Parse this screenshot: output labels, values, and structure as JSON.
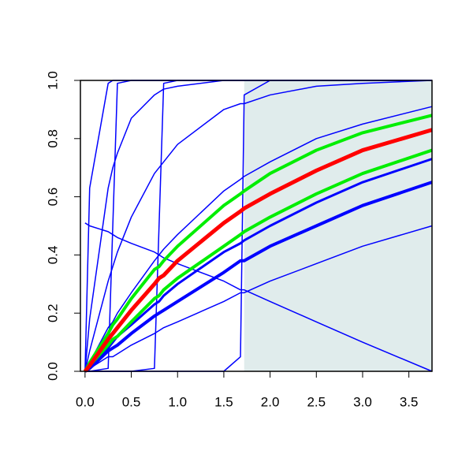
{
  "chart_data": {
    "type": "line",
    "x": [
      0,
      0.05,
      0.25,
      0.3,
      0.35,
      0.5,
      0.75,
      0.8,
      0.85,
      1,
      1.5,
      1.68,
      1.72,
      2,
      2.5,
      3,
      3.75
    ],
    "series": [
      {
        "color": "#0000ff",
        "width": 1.5,
        "values": [
          0,
          0.63,
          0.99,
          1,
          1,
          1,
          1,
          1,
          1,
          1,
          1,
          1,
          1,
          1,
          1,
          1,
          1
        ]
      },
      {
        "color": "#0000ff",
        "width": 1.5,
        "values": [
          0,
          0.18,
          0.63,
          0.7,
          0.75,
          0.87,
          0.95,
          0.96,
          0.97,
          0.98,
          1,
          1,
          1,
          1,
          1,
          1,
          1
        ]
      },
      {
        "color": "#0000ff",
        "width": 1.5,
        "values": [
          0,
          0.07,
          0.31,
          0.36,
          0.41,
          0.53,
          0.68,
          0.7,
          0.72,
          0.78,
          0.9,
          0.92,
          0.92,
          0.95,
          0.98,
          0.99,
          1
        ]
      },
      {
        "color": "#0000ff",
        "width": 1.5,
        "values": [
          0,
          0,
          0.01,
          0.5,
          0.99,
          1,
          1,
          1,
          1,
          1,
          1,
          1,
          1,
          1,
          1,
          1,
          1
        ]
      },
      {
        "color": "#0000ff",
        "width": 1.5,
        "values": [
          0,
          0,
          0,
          0,
          0,
          0,
          0.01,
          0.5,
          0.99,
          1,
          1,
          1,
          1,
          1,
          1,
          1,
          1
        ]
      },
      {
        "color": "#0000ff",
        "width": 1.5,
        "values": [
          0,
          0,
          0,
          0,
          0,
          0,
          0,
          0,
          0,
          0,
          0,
          0.05,
          0.95,
          1,
          1,
          1,
          1
        ]
      },
      {
        "color": "#0000ff",
        "width": 1.5,
        "values": [
          0.51,
          0.5,
          0.48,
          0.47,
          0.46,
          0.44,
          0.41,
          0.4,
          0.39,
          0.37,
          0.31,
          0.28,
          0.28,
          0.24,
          0.17,
          0.1,
          0
        ]
      },
      {
        "color": "#0000ff",
        "width": 1.5,
        "values": [
          0,
          0.03,
          0.15,
          0.17,
          0.2,
          0.27,
          0.38,
          0.4,
          0.42,
          0.47,
          0.62,
          0.66,
          0.67,
          0.72,
          0.8,
          0.85,
          0.91
        ]
      },
      {
        "color": "#0000ff",
        "width": 3,
        "values": [
          0,
          0.02,
          0.08,
          0.1,
          0.12,
          0.16,
          0.23,
          0.24,
          0.26,
          0.3,
          0.41,
          0.44,
          0.45,
          0.5,
          0.58,
          0.65,
          0.73
        ]
      },
      {
        "color": "#0000ff",
        "width": 4,
        "values": [
          0,
          0.01,
          0.07,
          0.08,
          0.09,
          0.13,
          0.19,
          0.2,
          0.21,
          0.24,
          0.34,
          0.38,
          0.38,
          0.43,
          0.5,
          0.57,
          0.65
        ]
      },
      {
        "color": "#0000ff",
        "width": 1.5,
        "values": [
          0,
          0.01,
          0.05,
          0.05,
          0.06,
          0.09,
          0.13,
          0.14,
          0.15,
          0.17,
          0.24,
          0.27,
          0.27,
          0.31,
          0.37,
          0.43,
          0.5
        ]
      },
      {
        "color": "#00ee00",
        "width": 4,
        "values": [
          0,
          0.03,
          0.13,
          0.16,
          0.18,
          0.25,
          0.35,
          0.36,
          0.38,
          0.43,
          0.57,
          0.61,
          0.62,
          0.68,
          0.76,
          0.82,
          0.88
        ]
      },
      {
        "color": "#00ee00",
        "width": 4,
        "values": [
          0,
          0.02,
          0.09,
          0.11,
          0.12,
          0.17,
          0.25,
          0.26,
          0.28,
          0.32,
          0.43,
          0.47,
          0.48,
          0.53,
          0.61,
          0.68,
          0.76
        ]
      },
      {
        "color": "#ff0000",
        "width": 5,
        "values": [
          0,
          0.02,
          0.11,
          0.13,
          0.15,
          0.21,
          0.3,
          0.32,
          0.33,
          0.38,
          0.51,
          0.55,
          0.56,
          0.61,
          0.69,
          0.76,
          0.83
        ]
      }
    ],
    "shaded_region": {
      "xmin": 1.72,
      "xmax": 3.75,
      "color": "#e0ecec"
    },
    "xlim": [
      -0.05,
      3.75
    ],
    "ylim": [
      0,
      1
    ],
    "xticks": [
      {
        "value": 0,
        "label": "0.0"
      },
      {
        "value": 0.5,
        "label": "0.5"
      },
      {
        "value": 1,
        "label": "1.0"
      },
      {
        "value": 1.5,
        "label": "1.5"
      },
      {
        "value": 2,
        "label": "2.0"
      },
      {
        "value": 2.5,
        "label": "2.5"
      },
      {
        "value": 3,
        "label": "3.0"
      },
      {
        "value": 3.5,
        "label": "3.5"
      }
    ],
    "yticks": [
      {
        "value": 0,
        "label": "0.0"
      },
      {
        "value": 0.2,
        "label": "0.2"
      },
      {
        "value": 0.4,
        "label": "0.4"
      },
      {
        "value": 0.6,
        "label": "0.6"
      },
      {
        "value": 0.8,
        "label": "0.8"
      },
      {
        "value": 1,
        "label": "1.0"
      }
    ]
  }
}
